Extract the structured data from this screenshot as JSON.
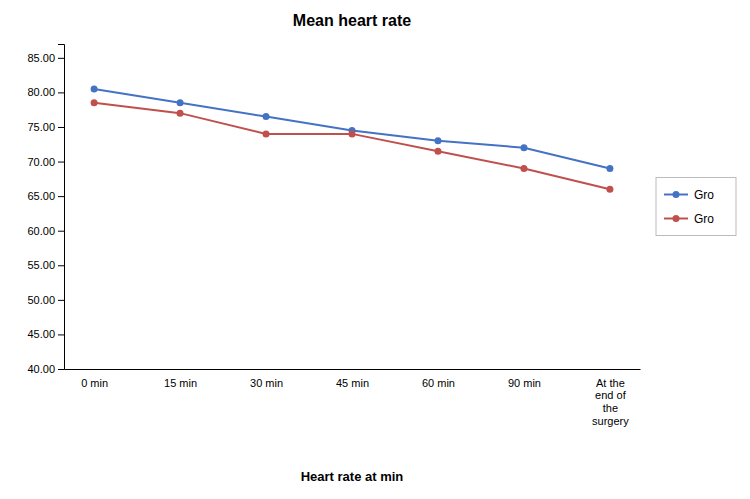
{
  "chart_data": {
    "type": "line",
    "title": "Mean heart rate",
    "x_label": "Heart rate at min",
    "categories": [
      "0 min",
      "15 min",
      "30 min",
      "45 min",
      "60 min",
      "90 min",
      "At the\nend of\nthe\nsurgery"
    ],
    "series": [
      {
        "name": "Gro",
        "color": "#4472C4",
        "values": [
          80.5,
          78.5,
          76.5,
          74.5,
          73.0,
          72.0,
          69.0
        ]
      },
      {
        "name": "Gro",
        "color": "#C0504D",
        "values": [
          78.5,
          77.0,
          74.0,
          74.0,
          71.5,
          69.0,
          66.0
        ]
      }
    ],
    "ylim": [
      40.0,
      87.0
    ],
    "yticks": [
      {
        "value": 40,
        "label": "40.00"
      },
      {
        "value": 45,
        "label": "45.00"
      },
      {
        "value": 50,
        "label": "50.00"
      },
      {
        "value": 55,
        "label": "55.00"
      },
      {
        "value": 60,
        "label": "60.00"
      },
      {
        "value": 65,
        "label": "65.00"
      },
      {
        "value": 70,
        "label": "70.00"
      },
      {
        "value": 75,
        "label": "75.00"
      },
      {
        "value": 80,
        "label": "80.00"
      },
      {
        "value": 85,
        "label": "85.00"
      }
    ],
    "marker": "circle",
    "grid": false,
    "legend": "right"
  }
}
